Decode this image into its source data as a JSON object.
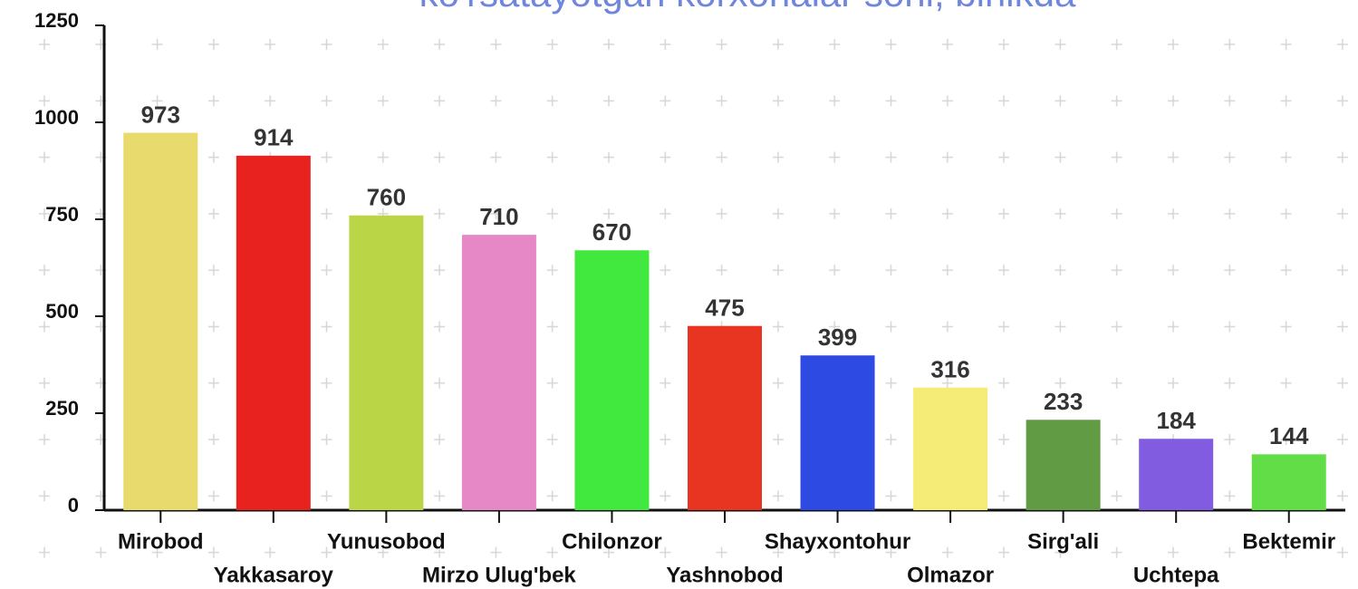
{
  "chart_data": {
    "type": "bar",
    "title": "ko'rsatayotgan korxonalar soni, birlikda",
    "categories": [
      "Mirobod",
      "Yakkasaroy",
      "Yunusobod",
      "Mirzo Ulug'bek",
      "Chilonzor",
      "Yashnobod",
      "Shayxontohur",
      "Olmazor",
      "Sirg'ali",
      "Uchtepa",
      "Bektemir"
    ],
    "values": [
      973,
      914,
      760,
      710,
      670,
      475,
      399,
      316,
      233,
      184,
      144
    ],
    "colors": [
      "#e8da6c",
      "#e8231f",
      "#bad647",
      "#e688c6",
      "#41e83d",
      "#e83522",
      "#2d4be3",
      "#f4ec77",
      "#619c45",
      "#815be0",
      "#62dc47"
    ],
    "ylim": [
      0,
      1250
    ],
    "yticks": [
      0,
      250,
      500,
      750,
      1000,
      1250
    ]
  }
}
